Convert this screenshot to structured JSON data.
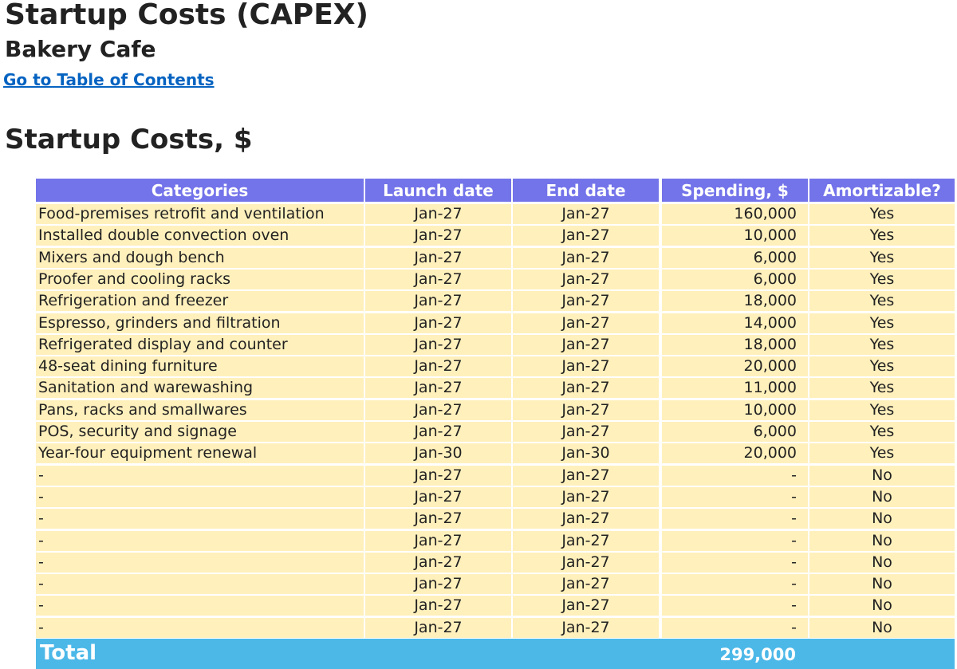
{
  "header": {
    "title": "Startup Costs (CAPEX)",
    "subtitle": "Bakery Cafe",
    "toc_link": "Go to Table of Contents",
    "section_title": "Startup Costs, $"
  },
  "colors": {
    "header_bg": "#7373EA",
    "row_bg": "#FFF0BC",
    "total_bg": "#4CB8E8",
    "link": "#0563C1"
  },
  "table": {
    "columns": [
      "Categories",
      "Launch date",
      "End date",
      "Spending, $",
      "Amortizable?"
    ],
    "rows": [
      {
        "category": "Food-premises retrofit and ventilation",
        "launch": "Jan-27",
        "end": "Jan-27",
        "spending": "160,000",
        "amortizable": "Yes"
      },
      {
        "category": "Installed double convection oven",
        "launch": "Jan-27",
        "end": "Jan-27",
        "spending": "10,000",
        "amortizable": "Yes"
      },
      {
        "category": "Mixers and dough bench",
        "launch": "Jan-27",
        "end": "Jan-27",
        "spending": "6,000",
        "amortizable": "Yes"
      },
      {
        "category": "Proofer and cooling racks",
        "launch": "Jan-27",
        "end": "Jan-27",
        "spending": "6,000",
        "amortizable": "Yes"
      },
      {
        "category": "Refrigeration and freezer",
        "launch": "Jan-27",
        "end": "Jan-27",
        "spending": "18,000",
        "amortizable": "Yes"
      },
      {
        "category": "Espresso, grinders and filtration",
        "launch": "Jan-27",
        "end": "Jan-27",
        "spending": "14,000",
        "amortizable": "Yes"
      },
      {
        "category": "Refrigerated display and counter",
        "launch": "Jan-27",
        "end": "Jan-27",
        "spending": "18,000",
        "amortizable": "Yes"
      },
      {
        "category": "48-seat dining furniture",
        "launch": "Jan-27",
        "end": "Jan-27",
        "spending": "20,000",
        "amortizable": "Yes"
      },
      {
        "category": "Sanitation and warewashing",
        "launch": "Jan-27",
        "end": "Jan-27",
        "spending": "11,000",
        "amortizable": "Yes"
      },
      {
        "category": "Pans, racks and smallwares",
        "launch": "Jan-27",
        "end": "Jan-27",
        "spending": "10,000",
        "amortizable": "Yes"
      },
      {
        "category": "POS, security and signage",
        "launch": "Jan-27",
        "end": "Jan-27",
        "spending": "6,000",
        "amortizable": "Yes"
      },
      {
        "category": "Year-four equipment renewal",
        "launch": "Jan-30",
        "end": "Jan-30",
        "spending": "20,000",
        "amortizable": "Yes"
      },
      {
        "category": "-",
        "launch": "Jan-27",
        "end": "Jan-27",
        "spending": "-",
        "amortizable": "No"
      },
      {
        "category": "-",
        "launch": "Jan-27",
        "end": "Jan-27",
        "spending": "-",
        "amortizable": "No"
      },
      {
        "category": "-",
        "launch": "Jan-27",
        "end": "Jan-27",
        "spending": "-",
        "amortizable": "No"
      },
      {
        "category": "-",
        "launch": "Jan-27",
        "end": "Jan-27",
        "spending": "-",
        "amortizable": "No"
      },
      {
        "category": "-",
        "launch": "Jan-27",
        "end": "Jan-27",
        "spending": "-",
        "amortizable": "No"
      },
      {
        "category": "-",
        "launch": "Jan-27",
        "end": "Jan-27",
        "spending": "-",
        "amortizable": "No"
      },
      {
        "category": "-",
        "launch": "Jan-27",
        "end": "Jan-27",
        "spending": "-",
        "amortizable": "No"
      },
      {
        "category": "-",
        "launch": "Jan-27",
        "end": "Jan-27",
        "spending": "-",
        "amortizable": "No"
      }
    ],
    "total_label": "Total",
    "total_value": "299,000"
  }
}
